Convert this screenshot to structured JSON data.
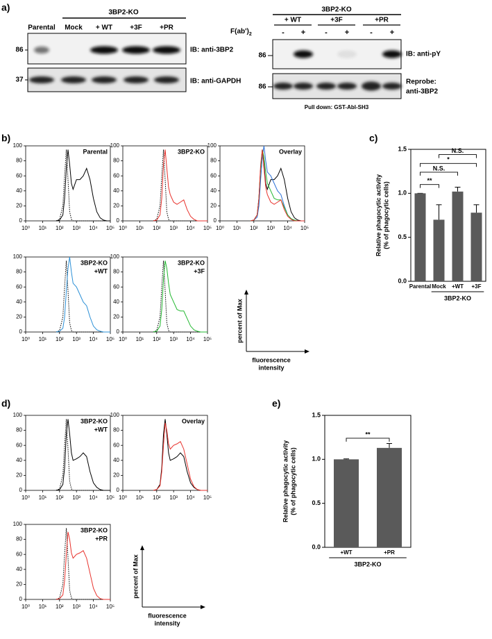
{
  "panel_labels": [
    "a)",
    "b)",
    "c)",
    "d)",
    "e)"
  ],
  "blot_left": {
    "group": "3BP2-KO",
    "lanes": [
      "Parental",
      "Mock",
      "+ WT",
      "+3F",
      "+PR"
    ],
    "markers": [
      "86",
      "37"
    ],
    "probes": [
      "IB: anti-3BP2",
      "IB: anti-GAPDH"
    ]
  },
  "blot_right": {
    "group": "3BP2-KO",
    "lanes": [
      "+ WT",
      "+3F",
      "+PR"
    ],
    "treatment": "F(ab')",
    "treatment_sub": "2",
    "signs": [
      "-",
      "+",
      "-",
      "+",
      "-",
      "+"
    ],
    "markers": [
      "86",
      "86"
    ],
    "probe": "IB: anti-pY",
    "reprobe": [
      "Reprobe:",
      "anti-3BP2"
    ],
    "footer": "Pull down: GST-Abl-SH3"
  },
  "histogram_axes": {
    "log_x": true,
    "xlim": [
      1,
      100000
    ],
    "xticks": [
      {
        "value": 1,
        "label": "10⁰"
      },
      {
        "value": 10,
        "label": "10¹"
      },
      {
        "value": 100,
        "label": "10²"
      },
      {
        "value": 1000,
        "label": "10³"
      },
      {
        "value": 10000,
        "label": "10⁴"
      },
      {
        "value": 100000,
        "label": "10⁵"
      }
    ],
    "ylim": [
      0,
      100
    ],
    "yticks": [
      0,
      20,
      40,
      60,
      80,
      100
    ],
    "x": [
      63,
      100,
      158,
      200,
      251,
      316,
      398,
      501,
      631,
      1000,
      1585,
      2512,
      3981,
      6310,
      10000,
      15849,
      25119,
      39811,
      63096,
      100000
    ]
  },
  "axis_keys": {
    "y_label": "percent of Max",
    "x_label": [
      "fluorescence",
      "intensity"
    ]
  },
  "chart_data": [
    {
      "type": "line",
      "label": [
        "Parental"
      ],
      "series": [
        {
          "color": "#000000",
          "line_style": "dotted",
          "values": [
            0,
            2,
            20,
            60,
            95,
            55,
            12,
            2,
            0,
            0,
            0,
            0,
            0,
            0,
            0,
            0,
            0,
            0,
            0,
            0
          ]
        },
        {
          "color": "#000000",
          "line_style": "solid",
          "values": [
            0,
            1,
            8,
            30,
            70,
            95,
            75,
            50,
            42,
            55,
            55,
            60,
            70,
            55,
            30,
            12,
            4,
            1,
            0,
            0
          ]
        }
      ]
    },
    {
      "type": "line",
      "label": [
        "3BP2-KO"
      ],
      "series": [
        {
          "color": "#000000",
          "line_style": "dotted",
          "values": [
            0,
            2,
            20,
            60,
            95,
            55,
            12,
            2,
            0,
            0,
            0,
            0,
            0,
            0,
            0,
            0,
            0,
            0,
            0,
            0
          ]
        },
        {
          "color": "#e8322c",
          "line_style": "solid",
          "values": [
            0,
            1,
            8,
            30,
            75,
            95,
            70,
            45,
            35,
            25,
            22,
            25,
            28,
            15,
            6,
            2,
            0,
            0,
            0,
            0
          ]
        }
      ]
    },
    {
      "type": "line",
      "label": [
        "Overlay"
      ],
      "series": [
        {
          "color": "#000000",
          "line_style": "solid",
          "values": [
            0,
            1,
            8,
            30,
            70,
            95,
            75,
            50,
            42,
            55,
            55,
            60,
            70,
            55,
            30,
            12,
            4,
            1,
            0,
            0
          ]
        },
        {
          "color": "#2a6fd6",
          "line_style": "solid",
          "values": [
            0,
            1,
            5,
            20,
            55,
            85,
            100,
            80,
            65,
            60,
            50,
            40,
            35,
            20,
            8,
            3,
            1,
            0,
            0,
            0
          ]
        },
        {
          "color": "#22b830",
          "line_style": "solid",
          "values": [
            0,
            1,
            8,
            30,
            70,
            95,
            85,
            65,
            50,
            40,
            30,
            28,
            28,
            18,
            8,
            3,
            1,
            0,
            0,
            0
          ]
        },
        {
          "color": "#e8322c",
          "line_style": "solid",
          "values": [
            0,
            1,
            8,
            30,
            75,
            95,
            70,
            45,
            35,
            25,
            22,
            25,
            28,
            15,
            6,
            2,
            0,
            0,
            0,
            0
          ]
        }
      ]
    },
    {
      "type": "line",
      "label": [
        "3BP2-KO",
        "+WT"
      ],
      "series": [
        {
          "color": "#000000",
          "line_style": "dotted",
          "values": [
            0,
            2,
            20,
            60,
            95,
            55,
            12,
            2,
            0,
            0,
            0,
            0,
            0,
            0,
            0,
            0,
            0,
            0,
            0,
            0
          ]
        },
        {
          "color": "#2a8fd6",
          "line_style": "solid",
          "values": [
            0,
            1,
            5,
            20,
            55,
            85,
            100,
            80,
            65,
            60,
            50,
            40,
            35,
            20,
            8,
            3,
            1,
            0,
            0,
            0
          ]
        }
      ]
    },
    {
      "type": "line",
      "label": [
        "3BP2-KO",
        "+3F"
      ],
      "series": [
        {
          "color": "#000000",
          "line_style": "dotted",
          "values": [
            0,
            2,
            20,
            60,
            95,
            55,
            12,
            2,
            0,
            0,
            0,
            0,
            0,
            0,
            0,
            0,
            0,
            0,
            0,
            0
          ]
        },
        {
          "color": "#22b830",
          "line_style": "solid",
          "values": [
            0,
            1,
            8,
            30,
            70,
            95,
            85,
            65,
            50,
            40,
            30,
            28,
            28,
            18,
            8,
            3,
            1,
            0,
            0,
            0
          ]
        }
      ]
    },
    {
      "type": "bar",
      "y_label": [
        "Relative phagocytic activity",
        "(% of phagocytic cells)"
      ],
      "group_label": "3BP2-KO",
      "categories": [
        "Parental",
        "Mock",
        "+WT",
        "+3F"
      ],
      "values": [
        1.0,
        0.7,
        1.02,
        0.78
      ],
      "errors": [
        0,
        0.17,
        0.05,
        0.09
      ],
      "color": "#5a5a5a",
      "ylim": [
        0,
        1.5
      ],
      "yticks": [
        {
          "value": 0,
          "label": "0.0"
        },
        {
          "value": 0.5,
          "label": "0.5"
        },
        {
          "value": 1,
          "label": "1.0"
        },
        {
          "value": 1.5,
          "label": "1.5"
        }
      ],
      "annotations": [
        {
          "text": "**",
          "between": [
            "Parental",
            "Mock"
          ]
        },
        {
          "text": "N.S.",
          "between": [
            "Parental",
            "+WT"
          ]
        },
        {
          "text": "*",
          "between": [
            "Parental",
            "+3F"
          ]
        },
        {
          "text": "N.S.",
          "between": [
            "Mock",
            "+3F"
          ]
        }
      ]
    },
    {
      "type": "line",
      "label": [
        "3BP2-KO",
        "+WT"
      ],
      "series": [
        {
          "color": "#000000",
          "line_style": "dotted",
          "values": [
            0,
            2,
            20,
            60,
            95,
            55,
            12,
            2,
            0,
            0,
            0,
            0,
            0,
            0,
            0,
            0,
            0,
            0,
            0,
            0
          ]
        },
        {
          "color": "#000000",
          "line_style": "solid",
          "values": [
            0,
            1,
            8,
            30,
            75,
            95,
            75,
            50,
            40,
            42,
            45,
            50,
            45,
            25,
            10,
            4,
            1,
            0,
            0,
            0
          ]
        }
      ]
    },
    {
      "type": "line",
      "label": [
        "Overlay"
      ],
      "series": [
        {
          "color": "#000000",
          "line_style": "solid",
          "values": [
            0,
            1,
            8,
            30,
            75,
            95,
            75,
            50,
            40,
            42,
            45,
            50,
            45,
            25,
            10,
            4,
            1,
            0,
            0,
            0
          ]
        },
        {
          "color": "#e8322c",
          "line_style": "solid",
          "values": [
            0,
            1,
            6,
            25,
            60,
            90,
            80,
            62,
            55,
            60,
            62,
            65,
            55,
            35,
            15,
            5,
            1,
            0,
            0,
            0
          ]
        }
      ]
    },
    {
      "type": "line",
      "label": [
        "3BP2-KO",
        "+PR"
      ],
      "series": [
        {
          "color": "#000000",
          "line_style": "dotted",
          "values": [
            0,
            2,
            20,
            60,
            95,
            55,
            12,
            2,
            0,
            0,
            0,
            0,
            0,
            0,
            0,
            0,
            0,
            0,
            0,
            0
          ]
        },
        {
          "color": "#e8322c",
          "line_style": "solid",
          "values": [
            0,
            1,
            6,
            25,
            60,
            90,
            80,
            62,
            55,
            60,
            62,
            65,
            55,
            35,
            15,
            5,
            1,
            0,
            0,
            0
          ]
        }
      ]
    },
    {
      "type": "bar",
      "y_label": [
        "Relative phagocytic activity",
        "(% of phagocytic cells)"
      ],
      "group_label": "3BP2-KO",
      "categories": [
        "+WT",
        "+PR"
      ],
      "values": [
        1.0,
        1.13
      ],
      "errors": [
        0.005,
        0.05
      ],
      "color": "#5a5a5a",
      "ylim": [
        0,
        1.5
      ],
      "yticks": [
        {
          "value": 0,
          "label": "0.0"
        },
        {
          "value": 0.5,
          "label": "0.5"
        },
        {
          "value": 1,
          "label": "1.0"
        },
        {
          "value": 1.5,
          "label": "1.5"
        }
      ],
      "annotations": [
        {
          "text": "**",
          "between": [
            "+WT",
            "+PR"
          ]
        }
      ]
    }
  ]
}
